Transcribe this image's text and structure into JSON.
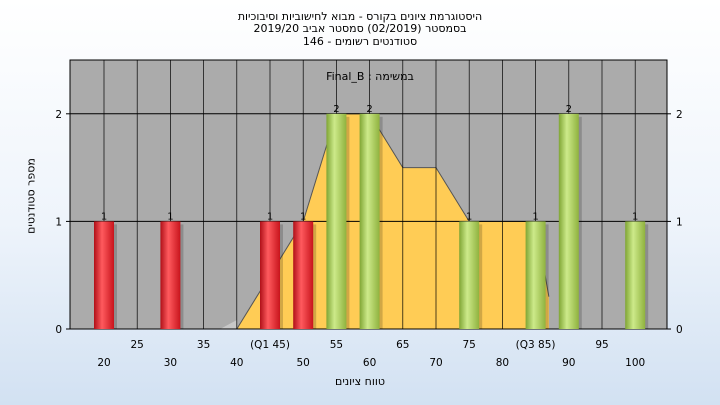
{
  "window": {
    "title_lines": [
      "היסטוגרמת ציונים בקורס - מבוא לחישוביות וסיבוכיות",
      "בסמסטר  (02/2019)  סמסטר אביב 2019/20",
      "סטודנטים רשומים - 146"
    ]
  },
  "chart_data": {
    "type": "bar",
    "subtitle": "במשימה : Final_B",
    "xlabel": "טווח ציונים",
    "ylabel": "מספר סטודנטים",
    "ylim": [
      0,
      2.5
    ],
    "y_ticks": [
      0,
      1,
      2
    ],
    "grid": true,
    "x_ticks_upper": [
      "25",
      "35",
      "(Q1 45)",
      "55",
      "65",
      "75",
      "(Q3 85)",
      "95"
    ],
    "x_ticks_lower": [
      "20",
      "30",
      "40",
      "50",
      "60",
      "70",
      "80",
      "90",
      "100"
    ],
    "bars": [
      {
        "label": "20",
        "value": 1,
        "color": "red"
      },
      {
        "label": "30",
        "value": 1,
        "color": "red"
      },
      {
        "label": "45",
        "value": 1,
        "color": "red"
      },
      {
        "label": "50",
        "value": 1,
        "color": "red"
      },
      {
        "label": "55",
        "value": 2,
        "color": "green"
      },
      {
        "label": "60",
        "value": 2,
        "color": "green"
      },
      {
        "label": "75",
        "value": 1,
        "color": "green"
      },
      {
        "label": "85",
        "value": 1,
        "color": "green"
      },
      {
        "label": "90",
        "value": 2,
        "color": "green"
      },
      {
        "label": "100",
        "value": 1,
        "color": "green"
      }
    ],
    "colors": {
      "plot_bg": "#ababab",
      "area": "#ffcc55",
      "area_edge": "#555555",
      "red_bar": "#e8343a",
      "green_bar": "#a8cc55"
    }
  }
}
